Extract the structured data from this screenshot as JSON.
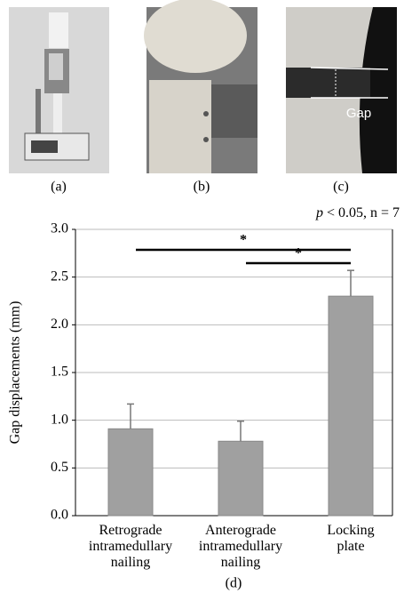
{
  "chart_data": {
    "type": "bar",
    "panel_labels": [
      "(a)",
      "(b)",
      "(c)",
      "(d)"
    ],
    "photo_annotation": "Gap",
    "annotation": "p < 0.05, n = 7",
    "y_label": "Gap displacements (mm)",
    "categories": [
      "Retrograde intramedullary nailing",
      "Anterograde intramedullary nailing",
      "Locking plate"
    ],
    "values": [
      0.91,
      0.78,
      2.3
    ],
    "errors": [
      0.26,
      0.21,
      0.27
    ],
    "color": "#a0a0a0",
    "ylim": [
      0,
      3
    ],
    "yticks": [
      {
        "value": 0,
        "label": "0.0"
      },
      0.5,
      {
        "value": 1,
        "label": "1.0"
      },
      1.5,
      {
        "value": 2,
        "label": "2.0"
      },
      2.5,
      {
        "value": 3,
        "label": "3.0"
      }
    ],
    "grid": true,
    "significance": [
      {
        "pair": [
          0,
          2
        ],
        "label": "*"
      },
      {
        "pair": [
          1,
          2
        ],
        "label": "*"
      }
    ]
  }
}
